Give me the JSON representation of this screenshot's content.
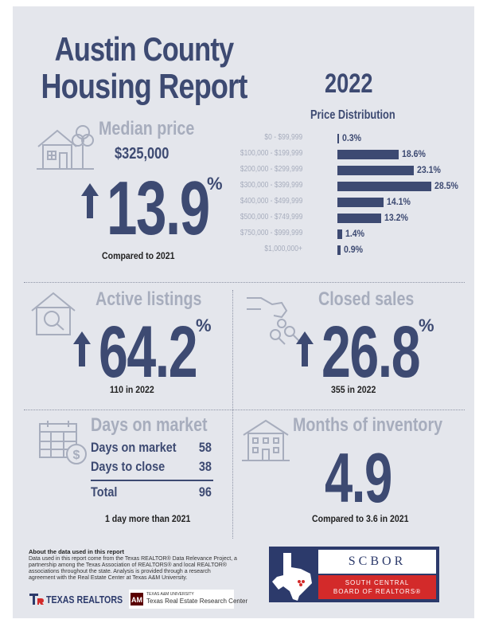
{
  "header": {
    "title_line1": "Austin County",
    "title_line2": "Housing Report",
    "year": "2022"
  },
  "median": {
    "label": "Median price",
    "value": "$325,000",
    "change": "13.9",
    "pct": "%",
    "note": "Compared to 2021"
  },
  "price_distribution": {
    "title": "Price Distribution"
  },
  "chart_data": {
    "type": "bar",
    "orientation": "horizontal",
    "title": "Price Distribution",
    "categories": [
      "$0 - $99,999",
      "$100,000 - $199,999",
      "$200,000 - $299,999",
      "$300,000 - $399,999",
      "$400,000 - $499,999",
      "$500,000 - $749,999",
      "$750,000 - $999,999",
      "$1,000,000+"
    ],
    "values": [
      0.3,
      18.6,
      23.1,
      28.5,
      14.1,
      13.2,
      1.4,
      0.9
    ],
    "value_labels": [
      "0.3%",
      "18.6%",
      "23.1%",
      "28.5%",
      "14.1%",
      "13.2%",
      "1.4%",
      "0.9%"
    ],
    "color": "#3d4a72"
  },
  "active_listings": {
    "label": "Active listings",
    "change": "64.2",
    "pct": "%",
    "note": "110 in 2022"
  },
  "closed_sales": {
    "label": "Closed sales",
    "change": "26.8",
    "pct": "%",
    "note": "355 in 2022"
  },
  "days_on_market": {
    "label": "Days on market",
    "rows": [
      {
        "label": "Days on market",
        "value": "58"
      },
      {
        "label": "Days to close",
        "value": "38"
      }
    ],
    "total_label": "Total",
    "total_value": "96",
    "note": "1 day more than 2021"
  },
  "inventory": {
    "label": "Months of inventory",
    "value": "4.9",
    "note": "Compared to 3.6 in 2021"
  },
  "about": {
    "title": "About the data used in this report",
    "body": "Data used in this report come from the Texas REALTOR® Data Relevance Project, a partnership among the Texas Association of REALTORS® and local REALTOR® associations throughout the state. Analysis is provided through a research agreement with the Real Estate Center at Texas A&M University."
  },
  "logos": {
    "tr_text": "TEXAS REALTORS",
    "tamu_small": "TEXAS A&M UNIVERSITY",
    "tamu_text": "Texas Real Estate Research Center",
    "scbor_title": "SCBOR",
    "scbor_sub1": "SOUTH CENTRAL",
    "scbor_sub2": "BOARD OF REALTORS®",
    "accent": "#d32a2a",
    "navy": "#2c3a6b"
  },
  "colors": {
    "navy": "#3d4a72",
    "grey": "#a7adbd",
    "background": "#e4e6ec"
  }
}
